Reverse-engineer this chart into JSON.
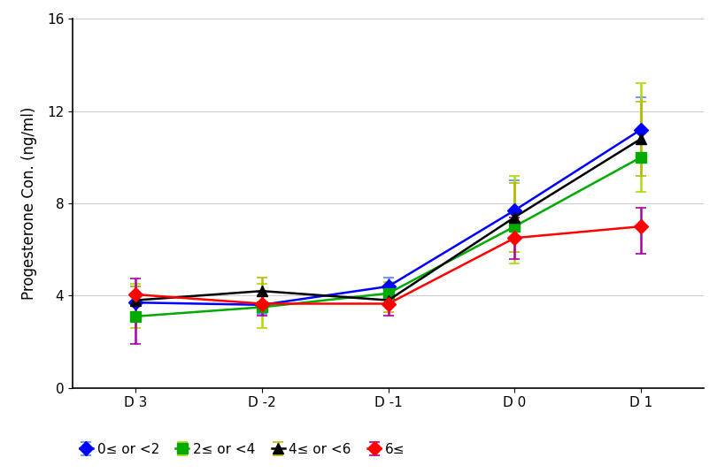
{
  "x_labels": [
    "D 3",
    "D -2",
    "D -1",
    "D 0",
    "D 1"
  ],
  "x_values": [
    0,
    1,
    2,
    3,
    4
  ],
  "series": [
    {
      "label": "0≤ or <2",
      "color": "#0000FF",
      "marker": "D",
      "markersize": 8,
      "values": [
        3.7,
        3.6,
        4.4,
        7.7,
        11.2
      ],
      "yerr_low": [
        0.7,
        0.4,
        0.4,
        1.3,
        1.4
      ],
      "yerr_high": [
        0.7,
        0.4,
        0.4,
        1.3,
        1.4
      ],
      "ecolor": "#5588FF"
    },
    {
      "label": "2≤ or <4",
      "color": "#00AA00",
      "marker": "s",
      "markersize": 8,
      "values": [
        3.1,
        3.5,
        4.1,
        7.0,
        10.0
      ],
      "yerr_low": [
        0.5,
        0.9,
        0.5,
        1.6,
        1.5
      ],
      "yerr_high": [
        1.4,
        1.0,
        0.5,
        2.2,
        3.2
      ],
      "ecolor": "#AADD00"
    },
    {
      "label": "4≤ or <6",
      "color": "#000000",
      "marker": "^",
      "markersize": 9,
      "values": [
        3.8,
        4.2,
        3.8,
        7.4,
        10.8
      ],
      "yerr_low": [
        0.6,
        0.6,
        0.5,
        1.5,
        1.6
      ],
      "yerr_high": [
        0.6,
        0.6,
        0.5,
        1.5,
        1.6
      ],
      "ecolor": "#BBBB00"
    },
    {
      "label": "6≤",
      "color": "#FF0000",
      "marker": "D",
      "markersize": 8,
      "values": [
        4.05,
        3.65,
        3.65,
        6.5,
        7.0
      ],
      "yerr_low": [
        2.15,
        0.5,
        0.5,
        0.9,
        1.2
      ],
      "yerr_high": [
        0.7,
        0.5,
        0.5,
        0.9,
        0.8
      ],
      "ecolor": "#AA00AA"
    }
  ],
  "ylabel": "Progesterone Con. (ng/ml)",
  "ylim": [
    0,
    16
  ],
  "yticks": [
    0,
    4,
    8,
    12,
    16
  ],
  "linewidth": 1.8,
  "capsize": 4,
  "capthick": 1.2,
  "background_color": "#FFFFFF",
  "grid_color": "#CCCCCC",
  "figsize": [
    8.2,
    5.35
  ],
  "dpi": 100
}
